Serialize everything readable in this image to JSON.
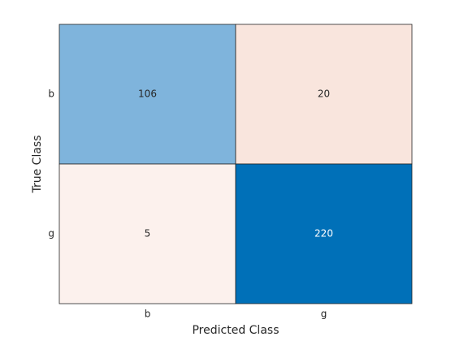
{
  "chart_data": {
    "type": "confusion_matrix",
    "xlabel": "Predicted Class",
    "ylabel": "True Class",
    "x_categories": [
      "b",
      "g"
    ],
    "y_categories": [
      "b",
      "g"
    ],
    "values": [
      [
        106,
        20
      ],
      [
        5,
        220
      ]
    ],
    "colors": [
      [
        "#7fb4dc",
        "#f9e5dd"
      ],
      [
        "#fcf1ed",
        "#0070b8"
      ]
    ]
  }
}
